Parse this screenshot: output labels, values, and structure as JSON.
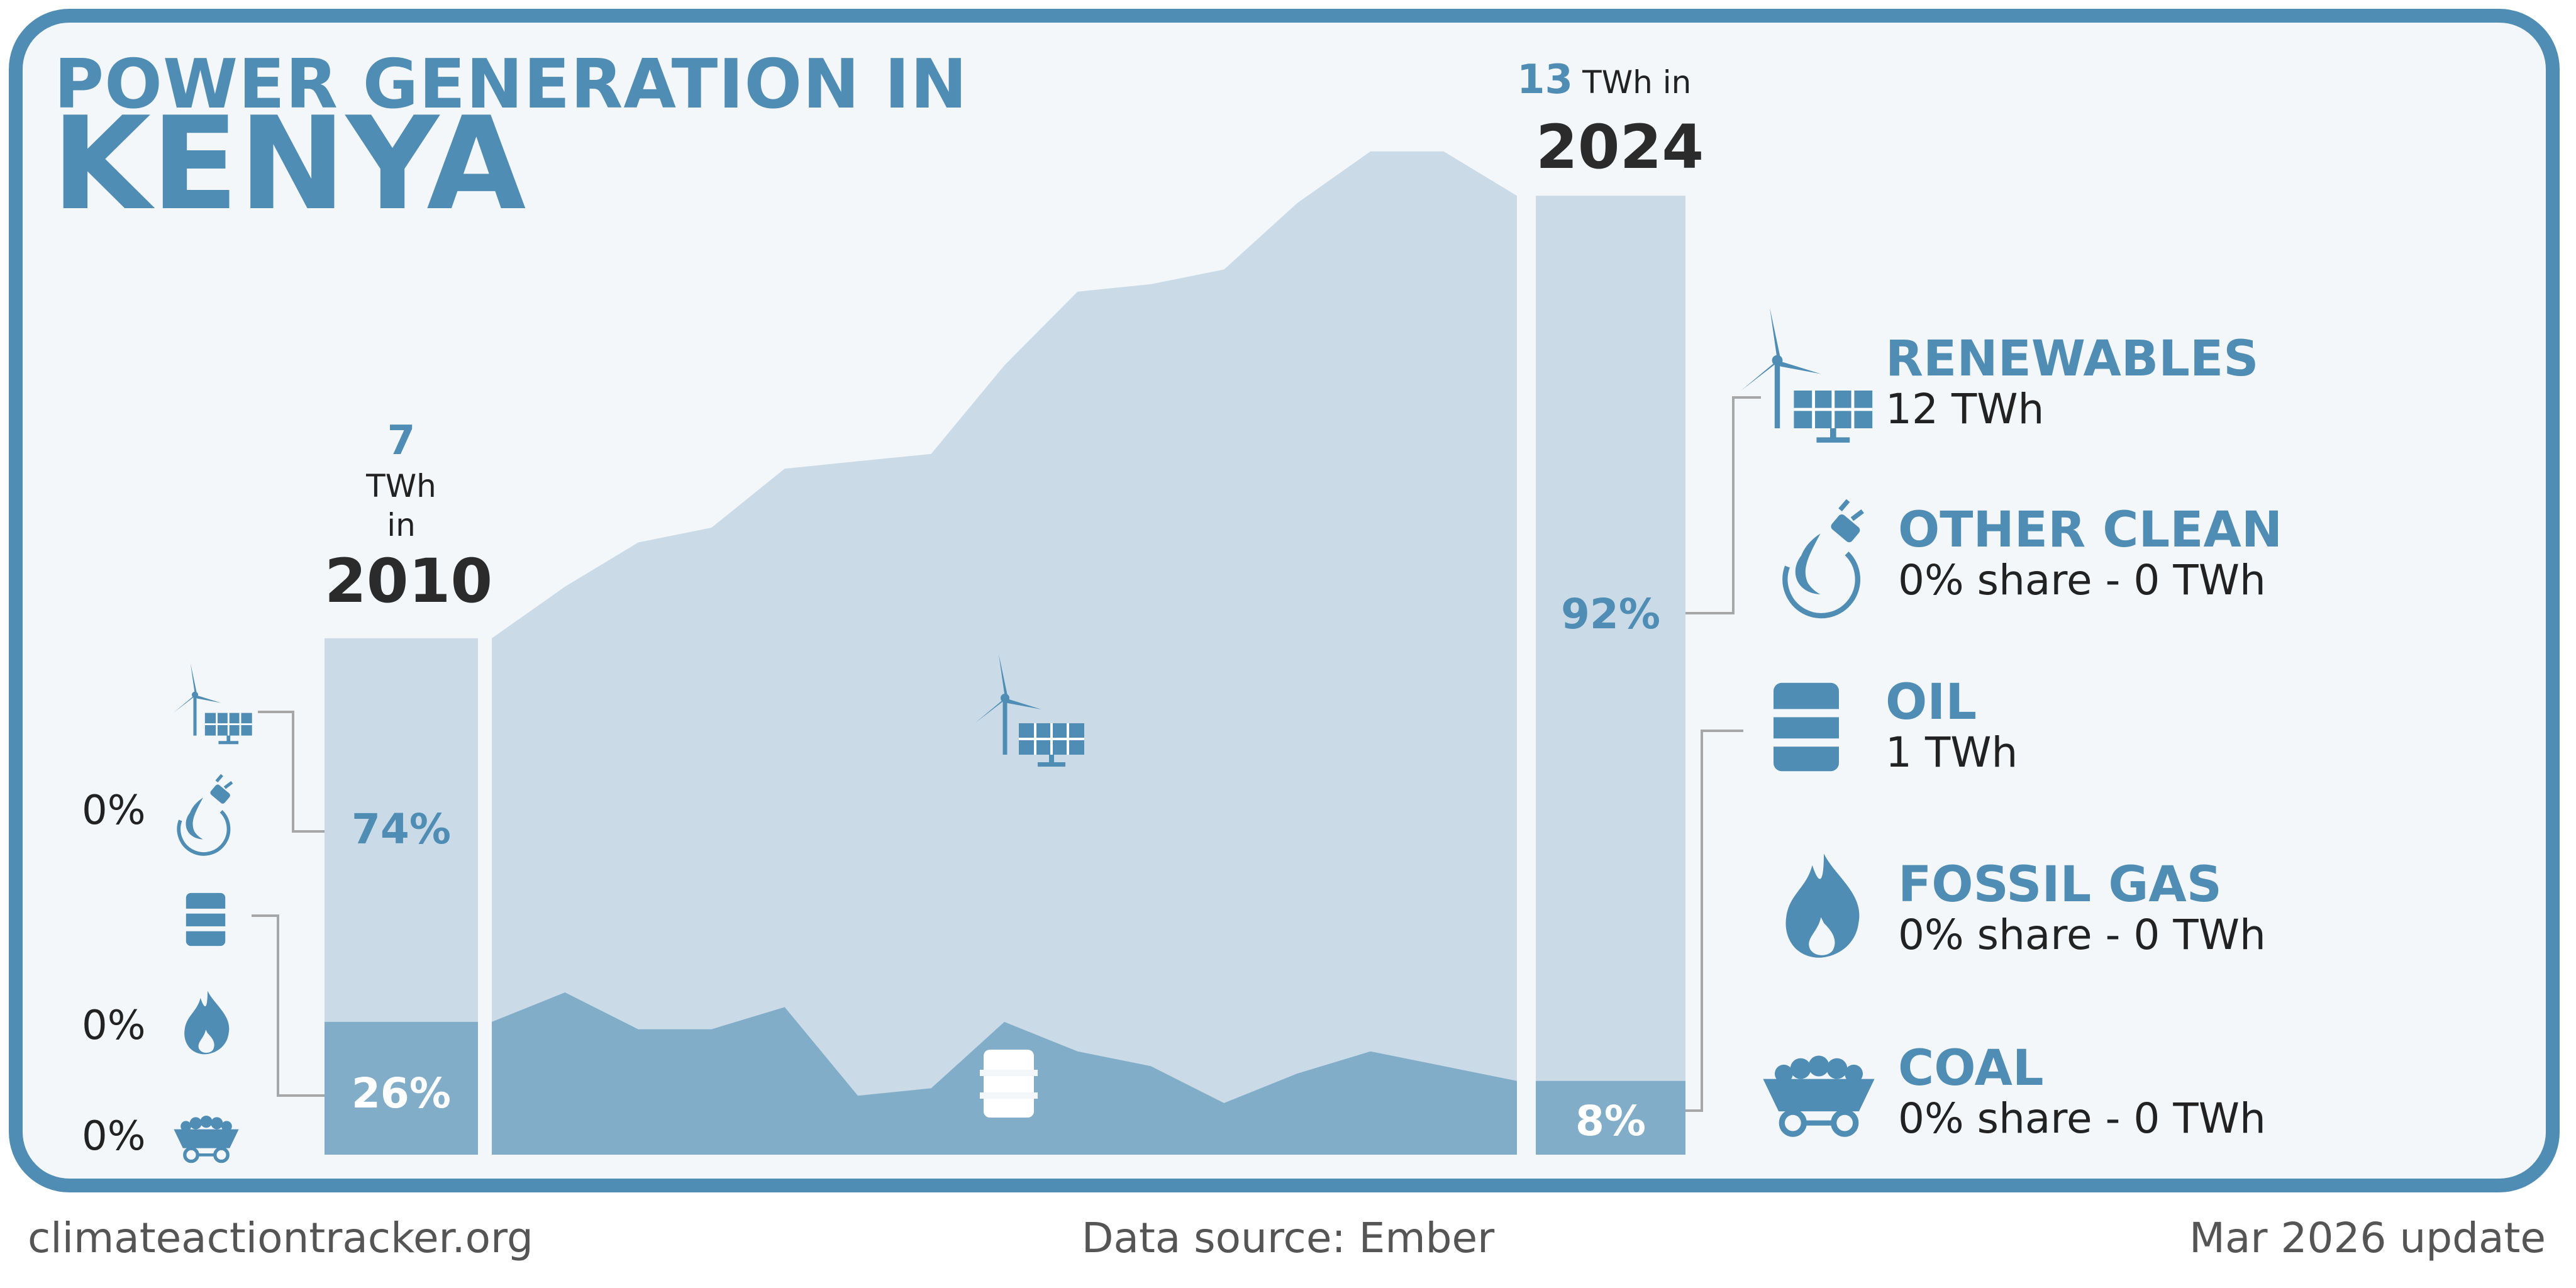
{
  "title": {
    "line1": "POWER GENERATION IN",
    "line2": "KENYA"
  },
  "start": {
    "total": "7",
    "unit": "TWh",
    "in": "in",
    "year": "2010"
  },
  "end": {
    "total": "13",
    "unit_in": "TWh in",
    "year": "2024"
  },
  "colors": {
    "renewables": "#cadbe7",
    "oil": "#81adc9",
    "accent": "#4f8db5",
    "background": "#f3f7fa"
  },
  "chart_data": {
    "type": "area",
    "x": [
      2010,
      2011,
      2012,
      2013,
      2014,
      2015,
      2016,
      2017,
      2018,
      2019,
      2020,
      2021,
      2022,
      2023,
      2024
    ],
    "series": [
      {
        "name": "Oil",
        "values": [
          1.8,
          2.2,
          1.7,
          1.7,
          2.0,
          0.8,
          0.9,
          1.8,
          1.4,
          1.2,
          0.7,
          1.1,
          1.4,
          1.2,
          1.0
        ]
      },
      {
        "name": "Renewables",
        "values": [
          5.2,
          5.5,
          6.6,
          6.8,
          7.3,
          8.6,
          8.6,
          8.9,
          10.3,
          10.6,
          11.3,
          11.8,
          12.2,
          12.4,
          12.0
        ]
      }
    ],
    "start_shares": [
      {
        "name": "Renewables",
        "value": "74%"
      },
      {
        "name": "Oil",
        "value": "26%"
      }
    ],
    "end_shares": [
      {
        "name": "Renewables",
        "value": "92%"
      },
      {
        "name": "Oil",
        "value": "8%"
      }
    ],
    "ylim": [
      0,
      13.3
    ]
  },
  "left_legend": {
    "other_clean": "0%",
    "fossil_gas": "0%",
    "coal": "0%"
  },
  "categories": [
    {
      "title": "RENEWABLES",
      "value": "12 TWh",
      "icon": "wind-solar-icon"
    },
    {
      "title": "OTHER CLEAN",
      "value": "0% share - 0 TWh",
      "icon": "other-clean-icon"
    },
    {
      "title": "OIL",
      "value": "1 TWh",
      "icon": "oil-barrel-icon"
    },
    {
      "title": "FOSSIL GAS",
      "value": "0% share - 0 TWh",
      "icon": "gas-flame-icon"
    },
    {
      "title": "COAL",
      "value": "0% share - 0 TWh",
      "icon": "coal-cart-icon"
    }
  ],
  "footer": {
    "left": "climateactiontracker.org",
    "center": "Data source: Ember",
    "right": "Mar 2026 update"
  }
}
